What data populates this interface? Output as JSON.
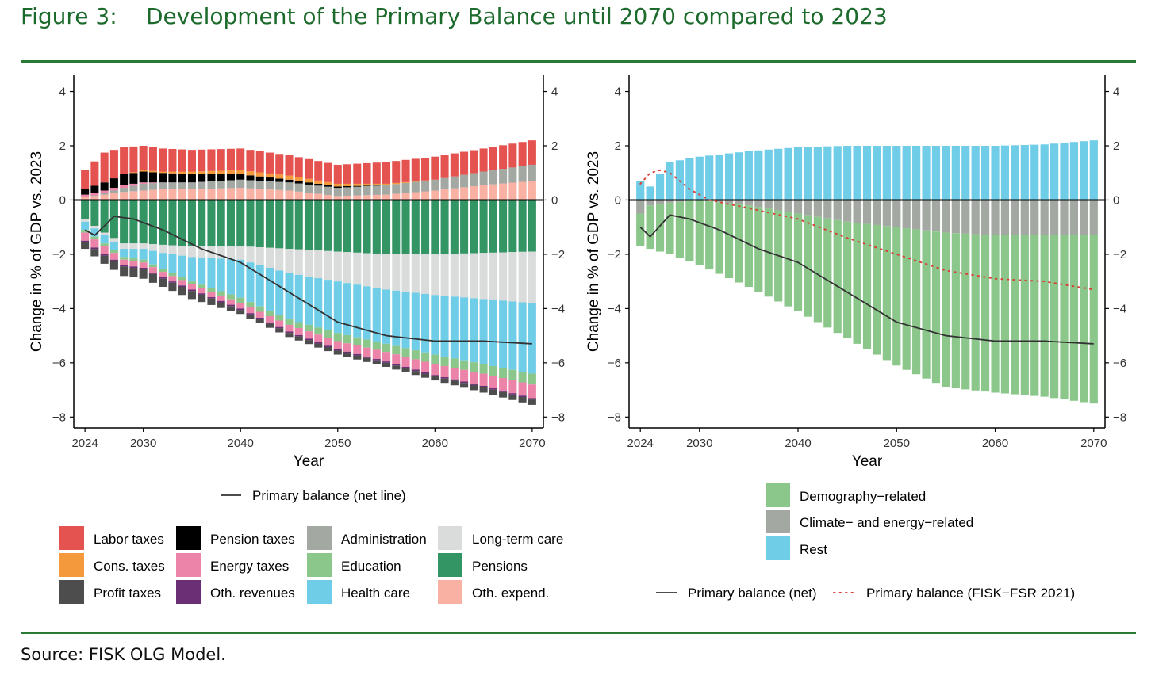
{
  "figure": {
    "number": "Figure 3:",
    "title": "Development of the Primary Balance until 2070 compared to 2023",
    "source": "Source:  FISK OLG Model."
  },
  "chart_data": [
    {
      "type": "bar",
      "stacked": true,
      "xlabel": "Year",
      "ylabel": "Change in % of GDP vs. 2023",
      "x_ticks": [
        "2024",
        "2030",
        "2040",
        "2050",
        "2060",
        "2070"
      ],
      "y_ticks": [
        "4",
        "2",
        "0",
        "−2",
        "−4",
        "−6",
        "−8"
      ],
      "ylim": [
        -8.4,
        4.6
      ],
      "xlim": [
        2023.5,
        2070.5
      ],
      "colors": {
        "Labor taxes": "#e4534f",
        "Cons. taxes": "#f5993d",
        "Profit taxes": "#4d4d4d",
        "Pension taxes": "#000000",
        "Energy taxes": "#eb84a8",
        "Oth. revenues": "#6a2f75",
        "Administration": "#a3a8a2",
        "Education": "#8bc78a",
        "Health care": "#70cde8",
        "Long-term care": "#d9dcda",
        "Pensions": "#339464",
        "Oth. expend.": "#f8b1a3"
      },
      "legend_line": "Primary balance (net line)",
      "legend": [
        "Labor taxes",
        "Cons. taxes",
        "Profit taxes",
        "Pension taxes",
        "Energy taxes",
        "Oth. revenues",
        "Administration",
        "Education",
        "Health care",
        "Long-term care",
        "Pensions",
        "Oth. expend."
      ],
      "x_years": [
        2024,
        2026,
        2028,
        2030,
        2032,
        2035,
        2040,
        2045,
        2050,
        2055,
        2060,
        2065,
        2070
      ],
      "positive": [
        {
          "name": "Oth. expend.",
          "values": [
            0.1,
            0.2,
            0.3,
            0.35,
            0.4,
            0.4,
            0.45,
            0.35,
            0.15,
            0.2,
            0.35,
            0.55,
            0.7
          ]
        },
        {
          "name": "Administration",
          "values": [
            0.0,
            0.05,
            0.15,
            0.25,
            0.25,
            0.25,
            0.3,
            0.3,
            0.3,
            0.35,
            0.4,
            0.5,
            0.6
          ]
        },
        {
          "name": "Energy taxes",
          "values": [
            0.1,
            0.1,
            0.1,
            0.05,
            0.0,
            0.0,
            0.0,
            0.0,
            0.0,
            0.0,
            0.0,
            0.0,
            0.0
          ]
        },
        {
          "name": "Pension taxes",
          "values": [
            0.2,
            0.3,
            0.4,
            0.4,
            0.35,
            0.3,
            0.2,
            0.1,
            0.05,
            0.0,
            0.0,
            0.0,
            0.0
          ]
        },
        {
          "name": "Cons. taxes",
          "values": [
            0.0,
            0.0,
            0.0,
            0.05,
            0.05,
            0.1,
            0.15,
            0.15,
            0.1,
            0.05,
            0.0,
            0.0,
            0.0
          ]
        },
        {
          "name": "Labor taxes",
          "values": [
            0.7,
            1.1,
            1.0,
            0.9,
            0.85,
            0.8,
            0.8,
            0.75,
            0.7,
            0.8,
            0.85,
            0.85,
            0.9
          ]
        }
      ],
      "negative": [
        {
          "name": "Pensions",
          "values": [
            -0.7,
            -1.2,
            -1.6,
            -1.6,
            -1.65,
            -1.7,
            -1.7,
            -1.8,
            -1.9,
            -2.0,
            -2.0,
            -1.95,
            -1.9
          ]
        },
        {
          "name": "Long-term care",
          "values": [
            -0.1,
            -0.1,
            -0.2,
            -0.2,
            -0.3,
            -0.4,
            -0.5,
            -0.9,
            -1.1,
            -1.3,
            -1.5,
            -1.7,
            -1.9
          ]
        },
        {
          "name": "Health care",
          "values": [
            -0.3,
            -0.3,
            -0.3,
            -0.4,
            -0.6,
            -0.9,
            -1.4,
            -1.7,
            -1.9,
            -2.0,
            -2.2,
            -2.4,
            -2.6
          ]
        },
        {
          "name": "Education",
          "values": [
            -0.1,
            -0.1,
            -0.1,
            -0.1,
            -0.1,
            -0.1,
            -0.2,
            -0.2,
            -0.3,
            -0.3,
            -0.35,
            -0.35,
            -0.4
          ]
        },
        {
          "name": "Energy taxes",
          "values": [
            -0.3,
            -0.3,
            -0.2,
            -0.2,
            -0.2,
            -0.2,
            -0.2,
            -0.25,
            -0.3,
            -0.35,
            -0.4,
            -0.45,
            -0.5
          ]
        },
        {
          "name": "Oth. revenues",
          "values": [
            -0.05,
            -0.05,
            -0.05,
            -0.05,
            -0.05,
            -0.05,
            -0.05,
            -0.05,
            -0.05,
            -0.05,
            -0.05,
            -0.05,
            -0.05
          ]
        },
        {
          "name": "Profit taxes",
          "values": [
            -0.25,
            -0.3,
            -0.35,
            -0.35,
            -0.3,
            -0.3,
            -0.15,
            -0.15,
            -0.15,
            -0.15,
            -0.15,
            -0.2,
            -0.2
          ]
        }
      ],
      "line": {
        "name": "Primary balance (net line)",
        "x": [
          2024,
          2025,
          2027,
          2029,
          2032,
          2036,
          2040,
          2045,
          2050,
          2055,
          2060,
          2065,
          2070
        ],
        "values": [
          -1.1,
          -1.3,
          -0.6,
          -0.7,
          -1.1,
          -1.8,
          -2.3,
          -3.4,
          -4.5,
          -5.0,
          -5.2,
          -5.2,
          -5.3
        ]
      }
    },
    {
      "type": "bar",
      "stacked": true,
      "xlabel": "Year",
      "ylabel": "Change in % of GDP vs. 2023",
      "x_ticks": [
        "2024",
        "2030",
        "2040",
        "2050",
        "2060",
        "2070"
      ],
      "y_ticks": [
        "4",
        "2",
        "0",
        "−2",
        "−4",
        "−6",
        "−8"
      ],
      "ylim": [
        -8.4,
        4.6
      ],
      "xlim": [
        2023.5,
        2070.5
      ],
      "colors": {
        "Demography−related": "#8bc78a",
        "Climate− and energy−related": "#a3a8a2",
        "Rest": "#70cde8"
      },
      "legend": [
        "Demography−related",
        "Climate− and energy−related",
        "Rest"
      ],
      "legend_lines": [
        "Primary balance (net)",
        "Primary balance (FISK−FSR 2021)"
      ],
      "x_years": [
        2024,
        2025,
        2027,
        2030,
        2035,
        2040,
        2045,
        2050,
        2055,
        2060,
        2065,
        2070
      ],
      "positive": [
        {
          "name": "Rest",
          "values": [
            0.7,
            0.5,
            1.4,
            1.6,
            1.8,
            1.95,
            2.0,
            2.0,
            2.0,
            2.0,
            2.05,
            2.2
          ]
        }
      ],
      "negative": [
        {
          "name": "Climate− and energy−related",
          "values": [
            -0.5,
            -0.2,
            -0.1,
            -0.0,
            -0.2,
            -0.5,
            -0.8,
            -1.0,
            -1.2,
            -1.3,
            -1.3,
            -1.3
          ]
        },
        {
          "name": "Demography−related",
          "values": [
            -1.2,
            -1.6,
            -1.9,
            -2.4,
            -3.0,
            -3.6,
            -4.3,
            -5.1,
            -5.7,
            -5.8,
            -5.95,
            -6.2
          ]
        }
      ],
      "lines": [
        {
          "name": "Primary balance (net)",
          "style": "solid",
          "color": "#333333",
          "x": [
            2024,
            2025,
            2027,
            2029,
            2032,
            2036,
            2040,
            2045,
            2050,
            2055,
            2060,
            2065,
            2070
          ],
          "values": [
            -1.0,
            -1.35,
            -0.55,
            -0.7,
            -1.1,
            -1.8,
            -2.3,
            -3.4,
            -4.5,
            -5.0,
            -5.2,
            -5.2,
            -5.3
          ]
        },
        {
          "name": "Primary balance (FISK−FSR 2021)",
          "style": "dotted",
          "color": "#d9423a",
          "x": [
            2024,
            2025,
            2026,
            2027,
            2029,
            2031,
            2035,
            2040,
            2045,
            2050,
            2055,
            2060,
            2065,
            2070
          ],
          "values": [
            0.6,
            1.0,
            1.1,
            1.0,
            0.4,
            0.0,
            -0.3,
            -0.7,
            -1.4,
            -2.0,
            -2.6,
            -2.9,
            -3.0,
            -3.3
          ]
        }
      ]
    }
  ]
}
